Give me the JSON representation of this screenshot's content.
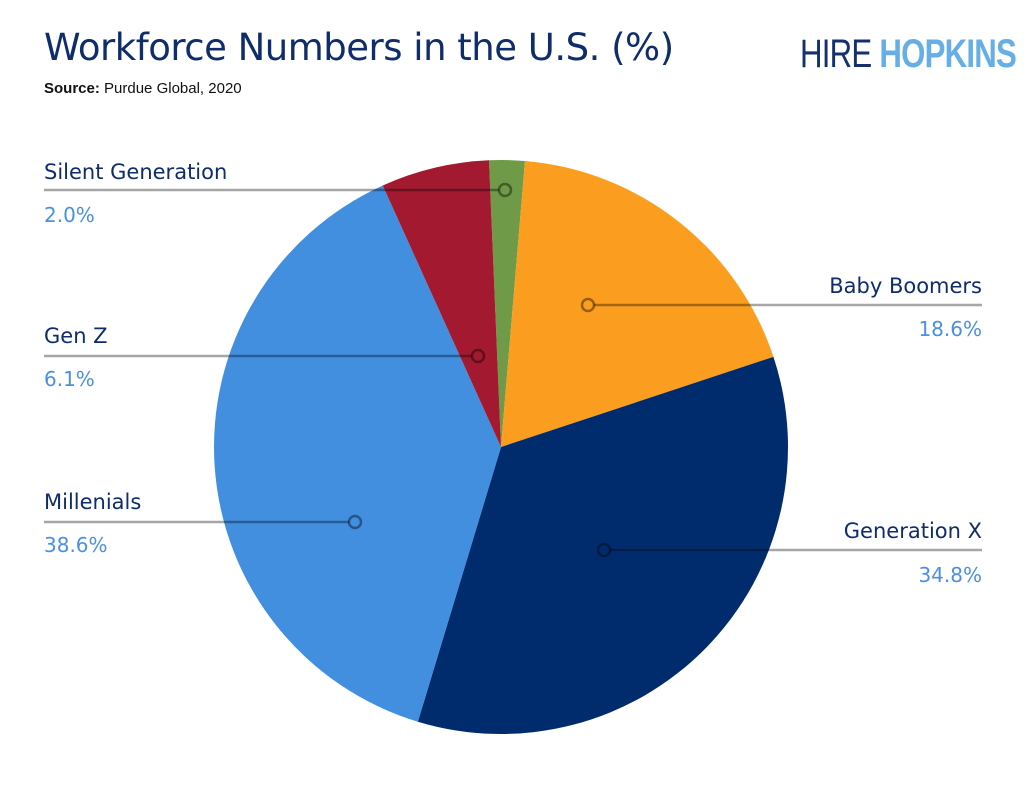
{
  "chart_data": {
    "type": "pie",
    "title": "Workforce Numbers in the U.S. (%)",
    "source_label": "Source:",
    "source_text": "Purdue Global, 2020",
    "slices": [
      {
        "label": "Silent Generation",
        "value": 2.0,
        "display": "2.0%",
        "color": "#6f9a47"
      },
      {
        "label": "Baby Boomers",
        "value": 18.6,
        "display": "18.6%",
        "color": "#fb9e1f"
      },
      {
        "label": "Generation X",
        "value": 34.8,
        "display": "34.8%",
        "color": "#002c6e"
      },
      {
        "label": "Millenials",
        "value": 38.6,
        "display": "38.6%",
        "color": "#428fe0"
      },
      {
        "label": "Gen Z",
        "value": 6.1,
        "display": "6.1%",
        "color": "#a31a30"
      }
    ]
  },
  "logo": {
    "part1": "HIRE",
    "part2": "HOPKINS"
  }
}
